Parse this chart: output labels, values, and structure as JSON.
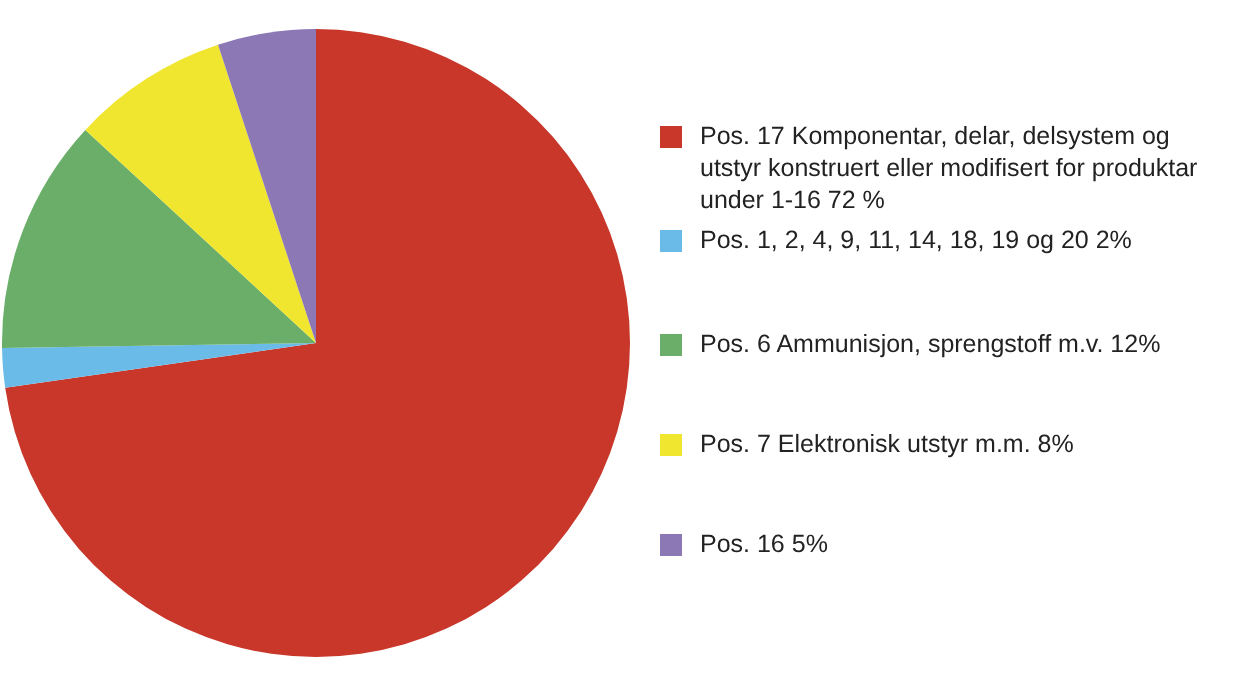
{
  "chart_data": {
    "type": "pie",
    "categories": [
      "Pos. 17 Komponentar, delar, delsystem og utstyr konstruert eller modifisert for produktar under 1-16 72 %",
      "Pos. 1, 2, 4, 9, 11, 14, 18, 19 og 20 2%",
      "Pos. 6 Ammunisjon, sprengstoff m.v. 12%",
      "Pos. 7 Elektronisk utstyr m.m. 8%",
      "Pos. 16 5%"
    ],
    "values": [
      72,
      2,
      12,
      8,
      5
    ],
    "colors": [
      "#c8372a",
      "#6bbbe8",
      "#6aae6a",
      "#f0e630",
      "#8b78b4"
    ],
    "legend": "right"
  }
}
